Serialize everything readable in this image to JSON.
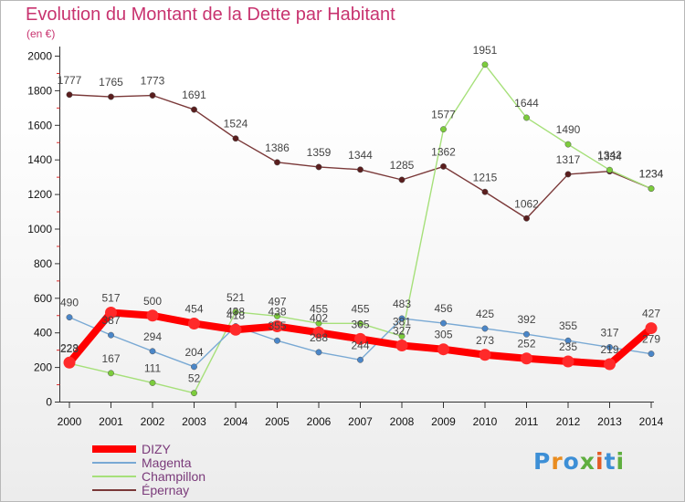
{
  "title": "Evolution du Montant de la Dette par Habitant",
  "subtitle": "(en €)",
  "logo": {
    "text": "Proxiti",
    "colors": [
      "#3d8fd6",
      "#e98c1f",
      "#3d8fd6",
      "#5fae3f",
      "#e35b24",
      "#3d8fd6",
      "#5fae3f"
    ]
  },
  "chart_data": {
    "type": "line",
    "title": "Evolution du Montant de la Dette par Habitant",
    "subtitle": "(en €)",
    "x": [
      "2000",
      "2001",
      "2002",
      "2003",
      "2004",
      "2005",
      "2006",
      "2007",
      "2008",
      "2009",
      "2010",
      "2011",
      "2012",
      "2013",
      "2014"
    ],
    "ylim": [
      0,
      2000
    ],
    "yticks": [
      "0",
      "200",
      "400",
      "600",
      "800",
      "1000",
      "1200",
      "1400",
      "1600",
      "1800",
      "2000"
    ],
    "grid": false,
    "legend_position": "bottom-left",
    "series": [
      {
        "name": "DIZY",
        "color": "#ff0000",
        "marker": "#ff2a2a",
        "width": 8,
        "values": [
          228,
          517,
          500,
          454,
          418,
          438,
          402,
          365,
          327,
          305,
          273,
          252,
          235,
          219,
          427
        ]
      },
      {
        "name": "Magenta",
        "color": "#79a9d4",
        "marker": "#4a86c8",
        "width": 1.4,
        "values": [
          490,
          387,
          294,
          204,
          438,
          355,
          288,
          244,
          483,
          456,
          425,
          392,
          355,
          317,
          279
        ]
      },
      {
        "name": "Champillon",
        "color": "#a6e07a",
        "marker": "#7ccc3c",
        "width": 1.4,
        "values": [
          223,
          167,
          111,
          52,
          521,
          497,
          455,
          455,
          381,
          1577,
          1951,
          1644,
          1490,
          1342,
          1234
        ]
      },
      {
        "name": "Épernay",
        "color": "#7a3838",
        "marker": "#5a1e1e",
        "width": 1.4,
        "values": [
          1777,
          1765,
          1773,
          1691,
          1524,
          1386,
          1359,
          1344,
          1285,
          1362,
          1215,
          1062,
          1317,
          1334,
          1234
        ]
      }
    ]
  }
}
